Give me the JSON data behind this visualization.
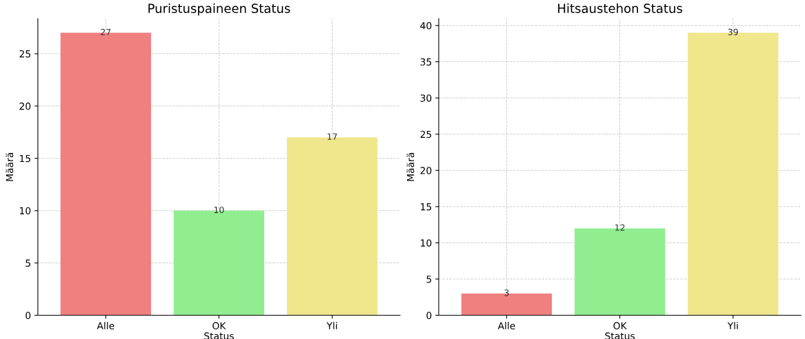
{
  "chart_data": [
    {
      "type": "bar",
      "title": "Puristuspaineen Status",
      "xlabel": "Status",
      "ylabel": "Määrä",
      "categories": [
        "Alle",
        "OK",
        "Yli"
      ],
      "values": [
        27,
        10,
        17
      ],
      "colors": [
        "#f08080",
        "#90ee90",
        "#f0e68c"
      ],
      "ylim": [
        0,
        28.35
      ],
      "yticks": [
        0,
        5,
        10,
        15,
        20,
        25
      ],
      "grid": true,
      "data_labels": true
    },
    {
      "type": "bar",
      "title": "Hitsaustehon Status",
      "xlabel": "Status",
      "ylabel": "Määrä",
      "categories": [
        "Alle",
        "OK",
        "Yli"
      ],
      "values": [
        3,
        12,
        39
      ],
      "colors": [
        "#f08080",
        "#90ee90",
        "#f0e68c"
      ],
      "ylim": [
        0,
        40.95
      ],
      "yticks": [
        0,
        5,
        10,
        15,
        20,
        25,
        30,
        35,
        40
      ],
      "grid": true,
      "data_labels": true
    }
  ]
}
